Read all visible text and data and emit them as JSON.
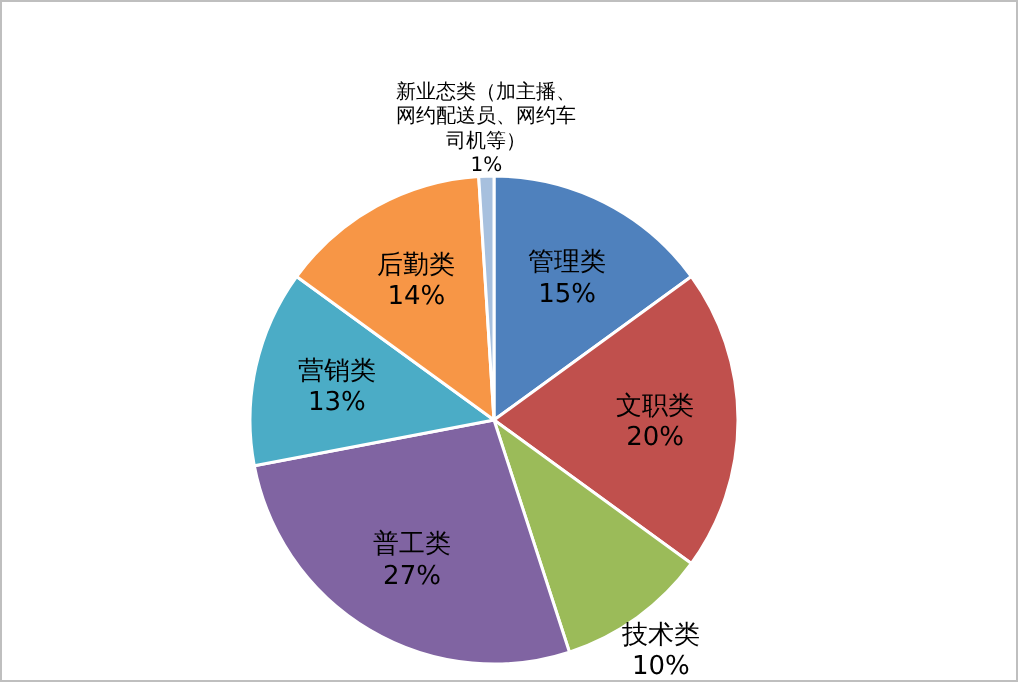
{
  "chart_data": {
    "type": "pie",
    "categories": [
      "管理类",
      "文职类",
      "技术类",
      "普工类",
      "营销类",
      "后勤类",
      "新业态类（加主播、网约配送员、网约车司机等）"
    ],
    "values": [
      15,
      20,
      10,
      27,
      13,
      14,
      1
    ],
    "value_labels": [
      "15%",
      "20%",
      "10%",
      "27%",
      "13%",
      "14%",
      "1%"
    ],
    "colors": [
      "#4f81bd",
      "#c0504d",
      "#9bbb59",
      "#8064a2",
      "#4bacc6",
      "#f79646",
      "#a7c0de"
    ]
  }
}
